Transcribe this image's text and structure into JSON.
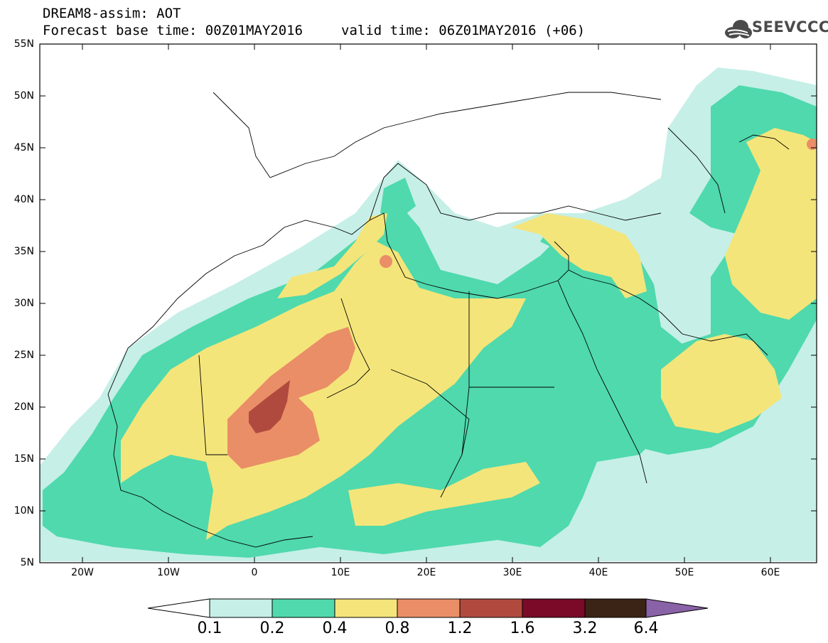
{
  "header": {
    "title_line1": "DREAM8-assim: AOT",
    "base_time": "Forecast base time: 00Z01MAY2016",
    "valid_time": "valid time: 06Z01MAY2016 (+06)"
  },
  "logo": {
    "text": "SEEVCCC",
    "icon": "cloud-icon"
  },
  "map": {
    "lat_labels": [
      "55N",
      "50N",
      "45N",
      "40N",
      "35N",
      "30N",
      "25N",
      "20N",
      "15N",
      "10N",
      "5N"
    ],
    "lon_labels": [
      "20W",
      "10W",
      "0",
      "10E",
      "20E",
      "30E",
      "40E",
      "50E",
      "60E"
    ]
  },
  "colorbar": {
    "labels": [
      "0.1",
      "0.2",
      "0.4",
      "0.8",
      "1.2",
      "1.6",
      "3.2",
      "6.4"
    ],
    "colors": [
      "#ffffff",
      "#c6efe7",
      "#4fd9ad",
      "#f4e57a",
      "#e98e66",
      "#b04a3f",
      "#7a0a28",
      "#3b2416",
      "#8a62a8"
    ]
  }
}
